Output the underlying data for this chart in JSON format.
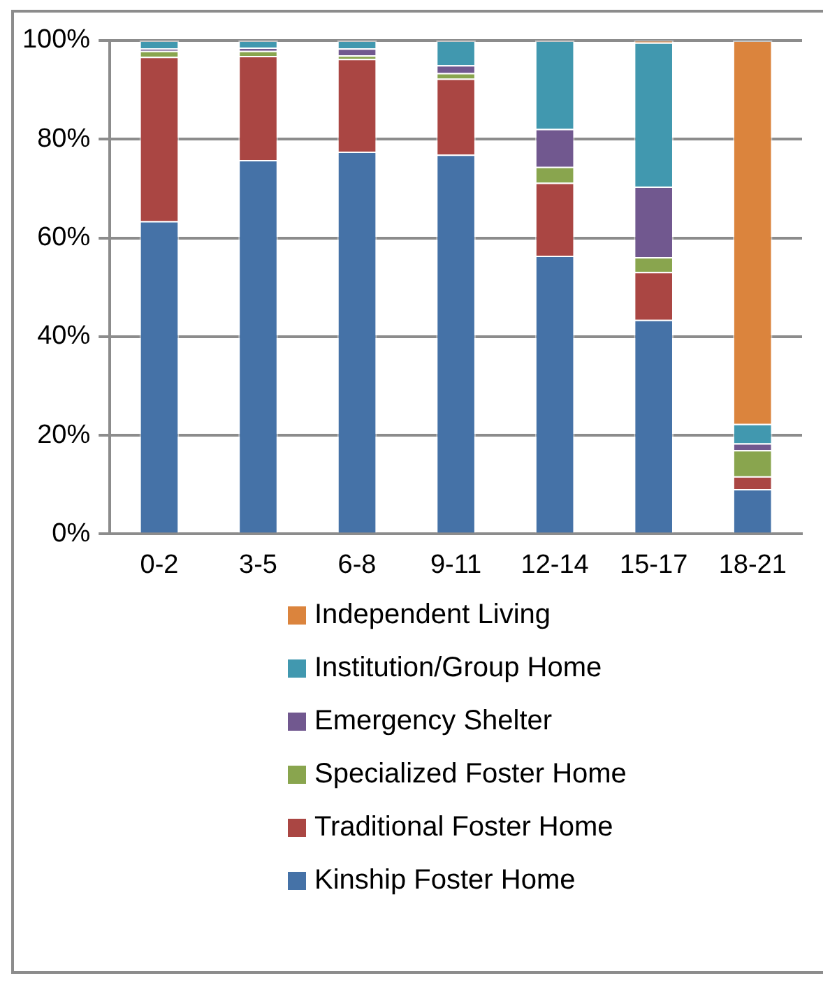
{
  "chart_data": {
    "type": "bar",
    "stacked": true,
    "categories": [
      "0-2",
      "3-5",
      "6-8",
      "9-11",
      "12-14",
      "15-17",
      "18-21"
    ],
    "series": [
      {
        "name": "Kinship Foster Home",
        "color": "#4572a7",
        "values": [
          63.4,
          75.8,
          77.5,
          76.9,
          56.4,
          43.4,
          9.1
        ]
      },
      {
        "name": "Traditional Foster Home",
        "color": "#aa4643",
        "values": [
          33.3,
          21.1,
          18.8,
          15.4,
          14.8,
          9.7,
          2.6
        ]
      },
      {
        "name": "Specialized Foster Home",
        "color": "#89a54e",
        "values": [
          1.2,
          1.0,
          0.7,
          1.1,
          3.2,
          3.0,
          5.3
        ]
      },
      {
        "name": "Emergency Shelter",
        "color": "#71588f",
        "values": [
          0.5,
          0.7,
          1.4,
          1.6,
          7.7,
          14.3,
          1.4
        ]
      },
      {
        "name": "Institution/Group Home",
        "color": "#4198af",
        "values": [
          1.6,
          1.4,
          1.6,
          5.0,
          17.9,
          29.2,
          3.9
        ]
      },
      {
        "name": "Independent Living",
        "color": "#db843d",
        "values": [
          0,
          0,
          0,
          0,
          0,
          0.4,
          77.7
        ]
      }
    ],
    "ylim": [
      0,
      100
    ],
    "yticks": [
      {
        "value": 0,
        "label": "0%"
      },
      {
        "value": 20,
        "label": "20%"
      },
      {
        "value": 40,
        "label": "40%"
      },
      {
        "value": 60,
        "label": "60%"
      },
      {
        "value": 80,
        "label": "80%"
      },
      {
        "value": 100,
        "label": "100%"
      }
    ],
    "grid": "y",
    "legend": "bottom"
  }
}
